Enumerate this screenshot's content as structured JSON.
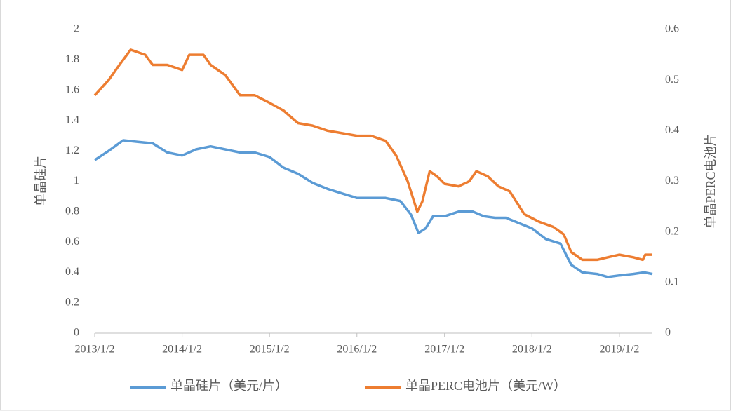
{
  "chart_data": {
    "type": "line",
    "ylabel": "单晶硅片",
    "y2label": "单晶PERC电池片",
    "xlim": [
      "2013/1/2",
      "2019/5/20"
    ],
    "xticks": [
      "2013/1/2",
      "2014/1/2",
      "2015/1/2",
      "2016/1/2",
      "2017/1/2",
      "2018/1/2",
      "2019/1/2"
    ],
    "ylim": [
      0,
      2
    ],
    "yticks": [
      0,
      0.2,
      0.4,
      0.6,
      0.8,
      1,
      1.2,
      1.4,
      1.6,
      1.8,
      2
    ],
    "y2lim": [
      0,
      0.6
    ],
    "y2ticks": [
      0,
      0.1,
      0.2,
      0.3,
      0.4,
      0.5,
      0.6
    ],
    "legend": "bottom",
    "series": [
      {
        "name": "单晶硅片（美元/片）",
        "color": "#5b9bd5",
        "x": [
          "2013/1/2",
          "2013/3/1",
          "2013/5/1",
          "2013/7/1",
          "2013/9/1",
          "2013/11/1",
          "2014/1/2",
          "2014/3/1",
          "2014/5/1",
          "2014/7/1",
          "2014/9/1",
          "2014/11/1",
          "2015/1/2",
          "2015/3/1",
          "2015/5/1",
          "2015/7/1",
          "2015/9/1",
          "2015/11/1",
          "2016/1/2",
          "2016/3/1",
          "2016/5/1",
          "2016/7/1",
          "2016/8/15",
          "2016/9/15",
          "2016/10/15",
          "2016/11/15",
          "2017/1/2",
          "2017/3/1",
          "2017/5/1",
          "2017/6/15",
          "2017/8/1",
          "2017/9/15",
          "2017/11/1",
          "2018/1/2",
          "2018/3/1",
          "2018/5/1",
          "2018/6/15",
          "2018/8/1",
          "2018/10/1",
          "2018/11/15",
          "2019/1/2",
          "2019/3/1",
          "2019/4/15",
          "2019/5/20"
        ],
        "values": [
          1.14,
          1.2,
          1.27,
          1.26,
          1.25,
          1.19,
          1.17,
          1.21,
          1.23,
          1.21,
          1.19,
          1.19,
          1.16,
          1.09,
          1.05,
          0.99,
          0.95,
          0.92,
          0.89,
          0.89,
          0.89,
          0.87,
          0.78,
          0.66,
          0.69,
          0.77,
          0.77,
          0.8,
          0.8,
          0.77,
          0.76,
          0.76,
          0.73,
          0.69,
          0.62,
          0.59,
          0.45,
          0.4,
          0.39,
          0.37,
          0.38,
          0.39,
          0.4,
          0.39
        ]
      },
      {
        "name": "单晶PERC电池片（美元/W）",
        "color": "#ed7d31",
        "axis": "y2",
        "x": [
          "2013/1/2",
          "2013/3/1",
          "2013/4/15",
          "2013/6/1",
          "2013/8/1",
          "2013/9/1",
          "2013/11/1",
          "2014/1/2",
          "2014/2/1",
          "2014/4/1",
          "2014/5/1",
          "2014/7/1",
          "2014/9/1",
          "2014/11/1",
          "2015/1/2",
          "2015/3/1",
          "2015/5/1",
          "2015/7/1",
          "2015/9/1",
          "2015/11/1",
          "2016/1/2",
          "2016/3/1",
          "2016/5/1",
          "2016/6/15",
          "2016/8/1",
          "2016/9/10",
          "2016/10/1",
          "2016/11/1",
          "2016/12/1",
          "2017/1/2",
          "2017/3/1",
          "2017/4/15",
          "2017/5/15",
          "2017/7/1",
          "2017/8/15",
          "2017/10/1",
          "2017/12/1",
          "2018/2/1",
          "2018/4/1",
          "2018/5/15",
          "2018/6/15",
          "2018/8/1",
          "2018/10/1",
          "2018/11/15",
          "2019/1/2",
          "2019/3/1",
          "2019/4/10",
          "2019/4/20",
          "2019/5/20"
        ],
        "values": [
          0.47,
          0.5,
          0.53,
          0.56,
          0.55,
          0.53,
          0.53,
          0.52,
          0.55,
          0.55,
          0.53,
          0.51,
          0.47,
          0.47,
          0.455,
          0.44,
          0.415,
          0.41,
          0.4,
          0.395,
          0.39,
          0.39,
          0.38,
          0.35,
          0.3,
          0.24,
          0.26,
          0.32,
          0.31,
          0.295,
          0.29,
          0.3,
          0.32,
          0.31,
          0.29,
          0.28,
          0.235,
          0.22,
          0.21,
          0.195,
          0.16,
          0.145,
          0.145,
          0.15,
          0.155,
          0.15,
          0.145,
          0.155,
          0.155
        ]
      }
    ]
  }
}
